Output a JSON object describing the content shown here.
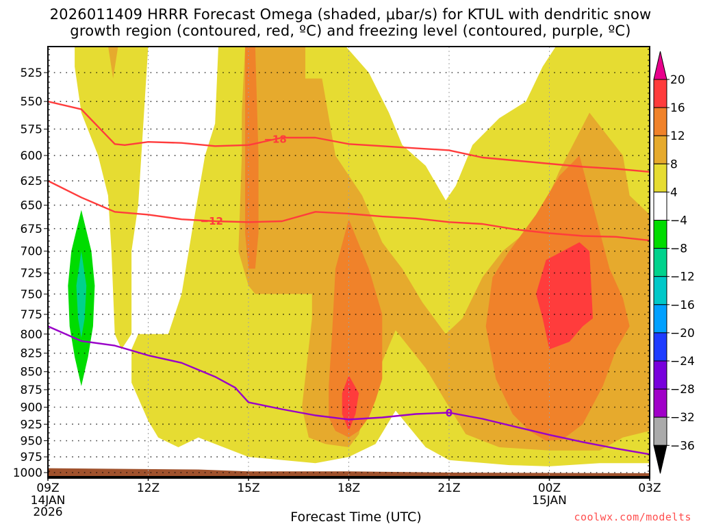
{
  "title_line1": "2026011409 HRRR Forecast Omega (shaded, μbar/s) for KTUL with dendritic snow",
  "title_line2": "growth region (contoured, red, ºC) and freezing level (contoured, purple, ºC)",
  "xlabel": "Forecast Time (UTC)",
  "credit": "coolwx.com/modelts",
  "chart_data": {
    "type": "heatmap",
    "title": "2026011409 HRRR Forecast Omega (shaded, μbar/s) for KTUL with dendritic snow growth region (contoured, red, ºC) and freezing level (contoured, purple, ºC)",
    "xlabel": "Forecast Time (UTC)",
    "ylabel": "Pressure (hPa)",
    "x_unit": "hours since 09Z 14JAN2026",
    "xlim": [
      0,
      18
    ],
    "ylim": [
      1000,
      503
    ],
    "y_scale": "log",
    "grid": true,
    "x_ticks": [
      {
        "x": 0,
        "label": "09Z",
        "sub": [
          "14JAN",
          "2026"
        ]
      },
      {
        "x": 3,
        "label": "12Z",
        "sub": []
      },
      {
        "x": 6,
        "label": "15Z",
        "sub": []
      },
      {
        "x": 9,
        "label": "18Z",
        "sub": []
      },
      {
        "x": 12,
        "label": "21Z",
        "sub": []
      },
      {
        "x": 15,
        "label": "00Z",
        "sub": [
          "15JAN"
        ]
      },
      {
        "x": 18,
        "label": "03Z",
        "sub": []
      }
    ],
    "y_ticks": [
      525,
      550,
      575,
      600,
      625,
      650,
      675,
      700,
      725,
      750,
      775,
      800,
      825,
      850,
      875,
      900,
      925,
      950,
      975,
      1000
    ],
    "colorbar": {
      "labels": [
        "20",
        "16",
        "12",
        "8",
        "4",
        "-4",
        "-8",
        "-12",
        "-16",
        "-20",
        "-24",
        "-28",
        "-32",
        "-36"
      ],
      "colors": [
        "#e8008c",
        "#ff3c3c",
        "#f0822a",
        "#e6aa2d",
        "#e6dc32",
        "#ffffff",
        "#00dc00",
        "#00d28c",
        "#00c8c8",
        "#00a0ff",
        "#1e3cff",
        "#7800dc",
        "#a000c8",
        "#aaaaaa",
        "#000000"
      ],
      "placement": "right"
    },
    "shaded_regions": [
      {
        "level": "4-8",
        "color": "#e6dc32",
        "name": "omega-4-8-left-column",
        "points": [
          [
            0.8,
            503
          ],
          [
            3.0,
            503
          ],
          [
            2.7,
            650
          ],
          [
            2.5,
            700
          ],
          [
            2.5,
            800
          ],
          [
            2.2,
            820
          ],
          [
            2.0,
            800
          ],
          [
            1.9,
            700
          ],
          [
            1.8,
            640
          ],
          [
            1.5,
            600
          ],
          [
            1.0,
            560
          ],
          [
            0.8,
            520
          ]
        ]
      },
      {
        "level": "4-8",
        "color": "#e6dc32",
        "name": "omega-4-8-main",
        "points": [
          [
            5.1,
            503
          ],
          [
            8.9,
            503
          ],
          [
            9.6,
            525
          ],
          [
            10.2,
            560
          ],
          [
            10.6,
            590
          ],
          [
            11.3,
            610
          ],
          [
            11.9,
            645
          ],
          [
            12.2,
            630
          ],
          [
            12.7,
            590
          ],
          [
            13.5,
            565
          ],
          [
            14.3,
            550
          ],
          [
            14.8,
            520
          ],
          [
            15.2,
            503
          ],
          [
            18,
            503
          ],
          [
            18,
            985
          ],
          [
            16.5,
            985
          ],
          [
            15.0,
            990
          ],
          [
            13.8,
            988
          ],
          [
            12.0,
            980
          ],
          [
            11.3,
            960
          ],
          [
            10.4,
            905
          ],
          [
            9.8,
            955
          ],
          [
            9.0,
            975
          ],
          [
            8.0,
            985
          ],
          [
            6.0,
            975
          ],
          [
            4.5,
            945
          ],
          [
            3.9,
            960
          ],
          [
            3.3,
            945
          ],
          [
            3.0,
            920
          ],
          [
            2.5,
            865
          ],
          [
            2.5,
            820
          ],
          [
            2.7,
            800
          ],
          [
            3.6,
            800
          ],
          [
            4.0,
            750
          ],
          [
            4.3,
            680
          ],
          [
            4.7,
            600
          ],
          [
            5.0,
            570
          ],
          [
            5.1,
            503
          ]
        ]
      },
      {
        "level": "8-12",
        "color": "#e6aa2d",
        "name": "omega-8-12-top-notch",
        "points": [
          [
            1.8,
            503
          ],
          [
            2.1,
            503
          ],
          [
            1.95,
            530
          ]
        ]
      },
      {
        "level": "8-12",
        "color": "#e6aa2d",
        "name": "omega-8-12-main",
        "points": [
          [
            5.9,
            503
          ],
          [
            7.7,
            503
          ],
          [
            7.7,
            530
          ],
          [
            8.2,
            530
          ],
          [
            8.6,
            600
          ],
          [
            9.4,
            640
          ],
          [
            10.0,
            690
          ],
          [
            10.6,
            720
          ],
          [
            11.2,
            760
          ],
          [
            11.9,
            800
          ],
          [
            12.4,
            780
          ],
          [
            13.0,
            730
          ],
          [
            13.6,
            700
          ],
          [
            14.6,
            670
          ],
          [
            15.3,
            615
          ],
          [
            16.2,
            560
          ],
          [
            17.2,
            600
          ],
          [
            17.4,
            640
          ],
          [
            18,
            660
          ],
          [
            18,
            935
          ],
          [
            17.2,
            945
          ],
          [
            16.5,
            965
          ],
          [
            15.0,
            965
          ],
          [
            13.5,
            960
          ],
          [
            12.5,
            940
          ],
          [
            12.0,
            900
          ],
          [
            11.3,
            845
          ],
          [
            10.4,
            795
          ],
          [
            9.6,
            880
          ],
          [
            9.3,
            940
          ],
          [
            9.0,
            960
          ],
          [
            8.3,
            955
          ],
          [
            7.8,
            945
          ],
          [
            7.6,
            900
          ],
          [
            7.9,
            780
          ],
          [
            7.9,
            750
          ],
          [
            6.2,
            750
          ],
          [
            6.0,
            740
          ],
          [
            5.7,
            700
          ],
          [
            5.8,
            600
          ],
          [
            5.8,
            560
          ]
        ]
      },
      {
        "level": "12-16",
        "color": "#f0822a",
        "name": "omega-12-16-narrow",
        "points": [
          [
            5.9,
            503
          ],
          [
            6.2,
            503
          ],
          [
            6.3,
            600
          ],
          [
            6.3,
            680
          ],
          [
            6.2,
            720
          ],
          [
            6.0,
            720
          ],
          [
            5.9,
            680
          ],
          [
            5.9,
            600
          ]
        ]
      },
      {
        "level": "12-16",
        "color": "#f0822a",
        "name": "omega-12-16-18z",
        "points": [
          [
            9.0,
            665
          ],
          [
            9.6,
            720
          ],
          [
            10.0,
            775
          ],
          [
            10.0,
            860
          ],
          [
            9.8,
            890
          ],
          [
            9.6,
            915
          ],
          [
            9.3,
            935
          ],
          [
            9.0,
            945
          ],
          [
            8.6,
            935
          ],
          [
            8.4,
            915
          ],
          [
            8.4,
            870
          ],
          [
            8.5,
            800
          ],
          [
            8.6,
            720
          ]
        ]
      },
      {
        "level": "12-16",
        "color": "#f0822a",
        "name": "omega-12-16-00z",
        "points": [
          [
            15.9,
            600
          ],
          [
            16.3,
            650
          ],
          [
            16.8,
            720
          ],
          [
            17.2,
            755
          ],
          [
            17.4,
            790
          ],
          [
            17.0,
            820
          ],
          [
            16.6,
            870
          ],
          [
            16.0,
            925
          ],
          [
            15.4,
            948
          ],
          [
            14.9,
            950
          ],
          [
            14.4,
            935
          ],
          [
            13.9,
            910
          ],
          [
            13.4,
            860
          ],
          [
            13.1,
            790
          ],
          [
            13.3,
            730
          ],
          [
            13.8,
            700
          ],
          [
            14.6,
            660
          ],
          [
            15.3,
            620
          ]
        ]
      },
      {
        "level": "16-20",
        "color": "#ff3c3c",
        "name": "omega-16-20-18z",
        "points": [
          [
            9.0,
            855
          ],
          [
            9.3,
            880
          ],
          [
            9.2,
            910
          ],
          [
            9.0,
            935
          ],
          [
            8.8,
            910
          ],
          [
            8.8,
            880
          ]
        ]
      },
      {
        "level": "16-20",
        "color": "#ff3c3c",
        "name": "omega-16-20-00z",
        "points": [
          [
            15.9,
            690
          ],
          [
            16.2,
            700
          ],
          [
            16.3,
            780
          ],
          [
            16.0,
            790
          ],
          [
            15.6,
            810
          ],
          [
            15.0,
            820
          ],
          [
            14.8,
            780
          ],
          [
            14.6,
            750
          ],
          [
            14.9,
            710
          ]
        ]
      },
      {
        "level": "-4--8",
        "color": "#00dc00",
        "name": "omega-neg4-neg8",
        "points": [
          [
            1.0,
            655
          ],
          [
            1.3,
            700
          ],
          [
            1.4,
            740
          ],
          [
            1.35,
            790
          ],
          [
            1.2,
            830
          ],
          [
            1.0,
            870
          ],
          [
            0.8,
            830
          ],
          [
            0.65,
            790
          ],
          [
            0.6,
            740
          ],
          [
            0.7,
            700
          ]
        ]
      },
      {
        "level": "-8--12",
        "color": "#00d28c",
        "name": "omega-neg8-neg12",
        "points": [
          [
            1.0,
            700
          ],
          [
            1.15,
            740
          ],
          [
            1.1,
            780
          ],
          [
            1.0,
            805
          ],
          [
            0.9,
            780
          ],
          [
            0.85,
            740
          ]
        ]
      }
    ],
    "ground": {
      "color": "#a0522d",
      "points": [
        [
          0,
          993
        ],
        [
          4.5,
          995
        ],
        [
          6,
          998
        ],
        [
          9,
          998
        ],
        [
          12,
          1000
        ],
        [
          18,
          1001
        ]
      ]
    },
    "series": [
      {
        "name": "-18 ºC isotherm",
        "color": "#ff3c3c",
        "label": "-18",
        "label_x": 6.8,
        "points": [
          [
            0,
            550
          ],
          [
            1.0,
            557
          ],
          [
            2.0,
            589
          ],
          [
            2.3,
            590
          ],
          [
            3.0,
            587
          ],
          [
            4.0,
            588
          ],
          [
            5.0,
            591
          ],
          [
            6.0,
            590
          ],
          [
            7.0,
            583
          ],
          [
            8.0,
            583
          ],
          [
            9.0,
            589
          ],
          [
            10.0,
            591
          ],
          [
            11.0,
            593
          ],
          [
            12.0,
            595
          ],
          [
            13.0,
            602
          ],
          [
            14.0,
            605
          ],
          [
            15.0,
            608
          ],
          [
            16.0,
            611
          ],
          [
            17.0,
            613
          ],
          [
            18.0,
            616
          ]
        ]
      },
      {
        "name": "-12 ºC isotherm",
        "color": "#ff3c3c",
        "label": "-12",
        "label_x": 4.9,
        "points": [
          [
            0,
            625
          ],
          [
            1.0,
            642
          ],
          [
            2.0,
            657
          ],
          [
            3.0,
            660
          ],
          [
            4.0,
            665
          ],
          [
            5.0,
            667
          ],
          [
            6.0,
            668
          ],
          [
            7.0,
            667
          ],
          [
            8.0,
            657
          ],
          [
            9.0,
            659
          ],
          [
            10.0,
            662
          ],
          [
            11.0,
            664
          ],
          [
            12.0,
            668
          ],
          [
            13.0,
            670
          ],
          [
            14.0,
            676
          ],
          [
            15.0,
            680
          ],
          [
            16.0,
            683
          ],
          [
            17.0,
            684
          ],
          [
            18.0,
            688
          ]
        ]
      },
      {
        "name": "0 ºC freezing level",
        "color": "#9900c8",
        "label": "0",
        "label_x": 12.0,
        "points": [
          [
            0,
            790
          ],
          [
            1.0,
            809
          ],
          [
            2.0,
            815
          ],
          [
            3.0,
            828
          ],
          [
            4.0,
            838
          ],
          [
            5.0,
            857
          ],
          [
            5.6,
            872
          ],
          [
            6.0,
            893
          ],
          [
            7.0,
            903
          ],
          [
            8.0,
            912
          ],
          [
            9.0,
            918
          ],
          [
            10.0,
            915
          ],
          [
            11.0,
            910
          ],
          [
            12.0,
            908
          ],
          [
            13.0,
            917
          ],
          [
            14.0,
            929
          ],
          [
            15.0,
            941
          ],
          [
            16.0,
            952
          ],
          [
            17.0,
            962
          ],
          [
            18.0,
            971
          ]
        ]
      }
    ]
  }
}
